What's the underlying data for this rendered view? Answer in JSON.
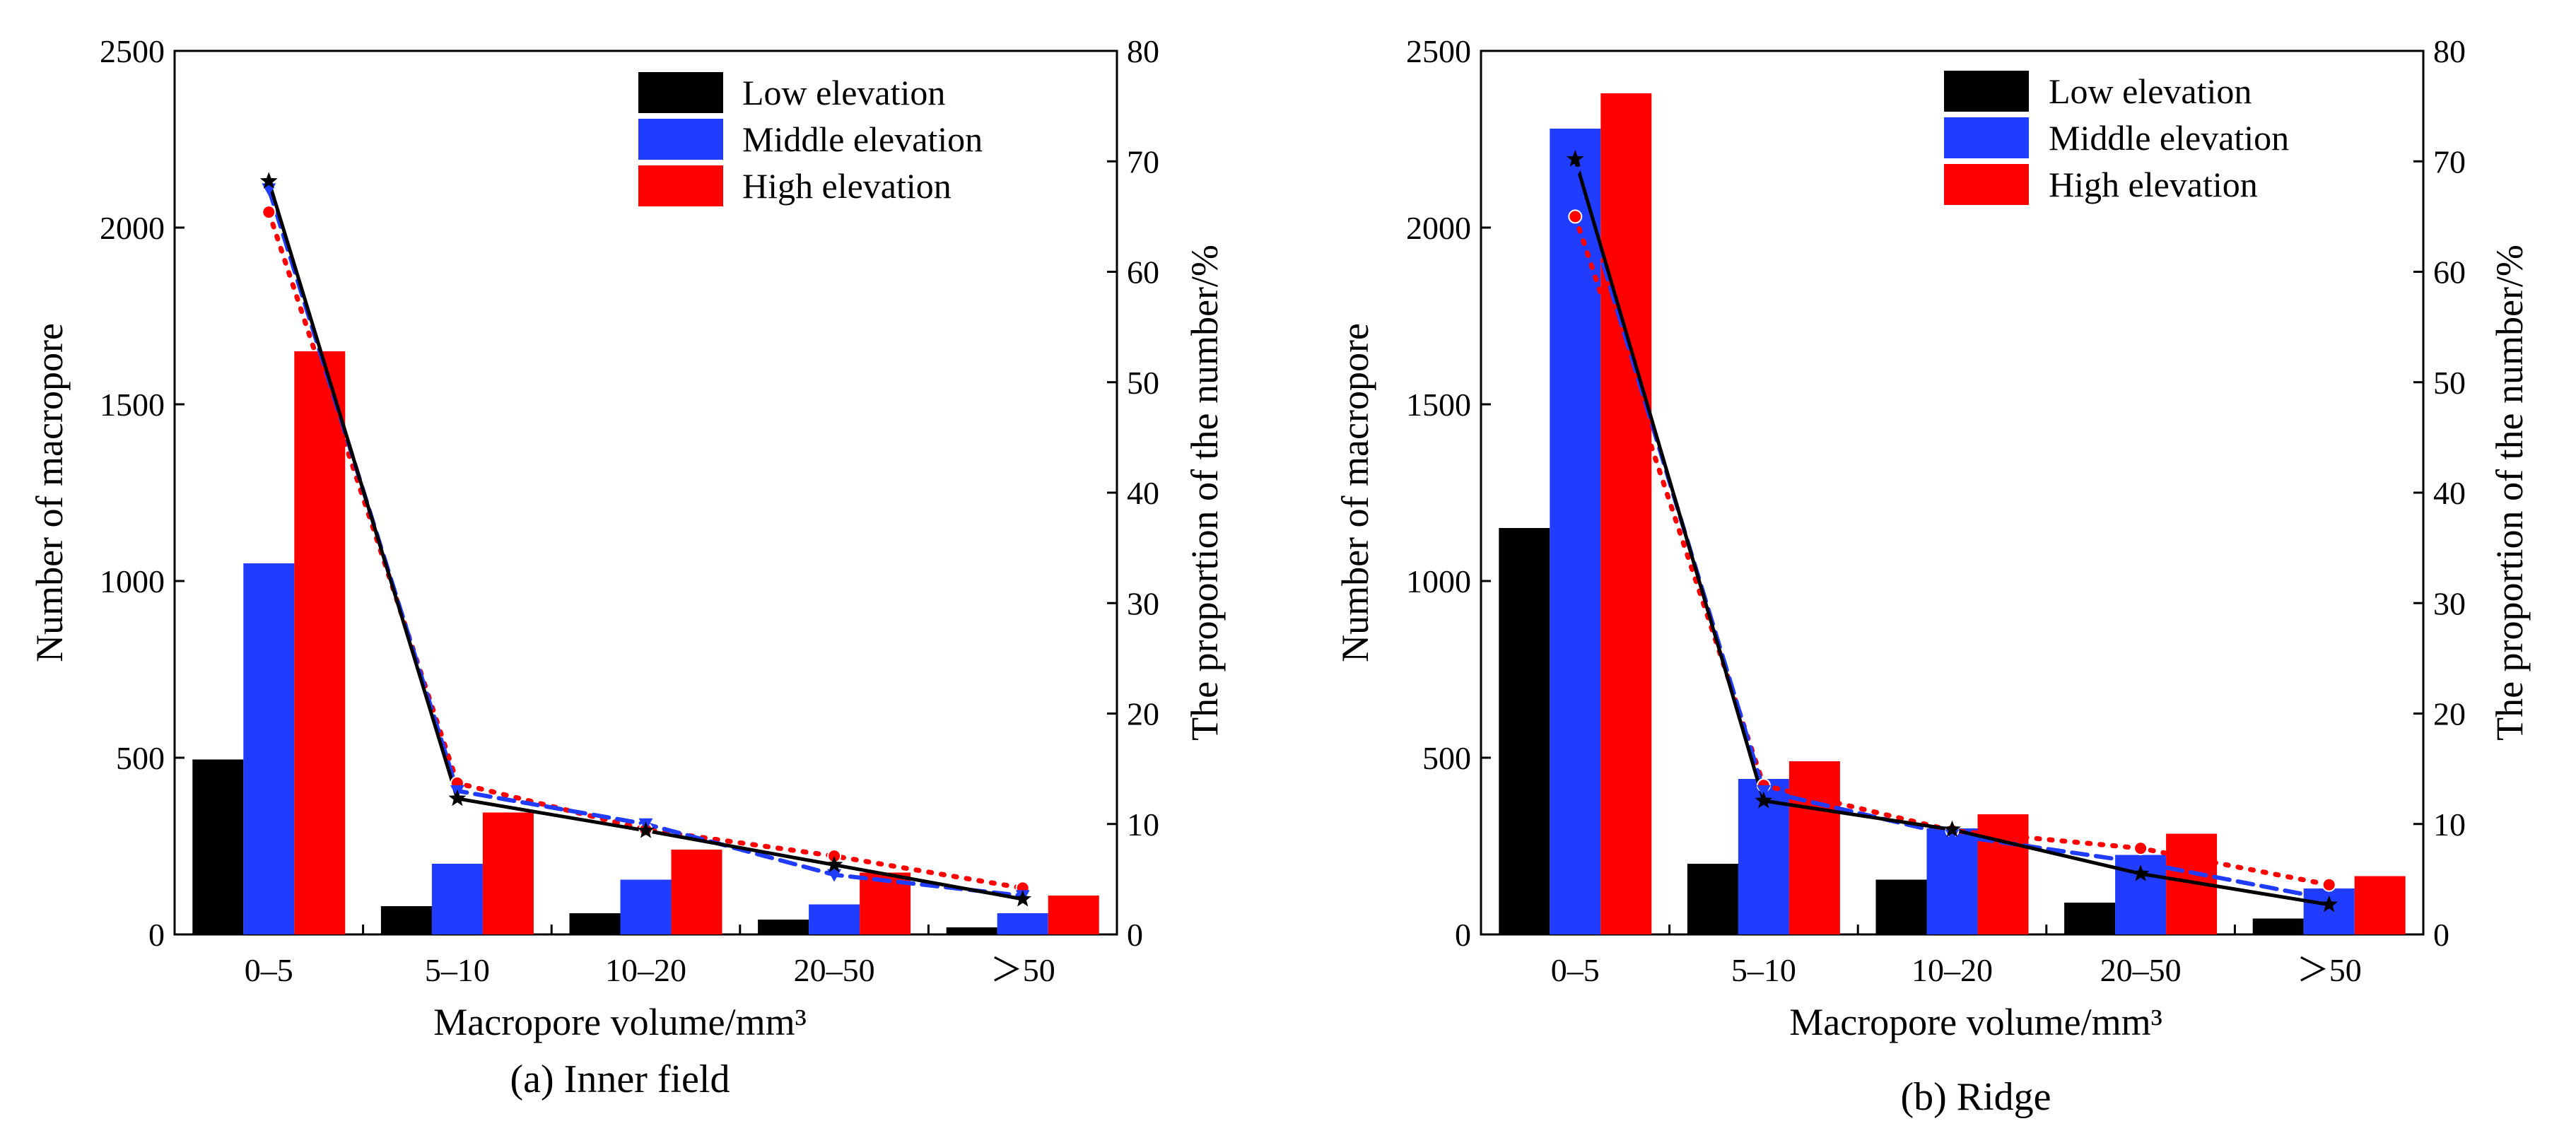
{
  "colors": {
    "low": "#000000",
    "middle": "#1f3cff",
    "high": "#ff0000"
  },
  "chart_data": [
    {
      "type": "bar",
      "caption": "(a) Inner field",
      "xlabel": "Macropore volume/mm³",
      "ylabel": "Number of macropore",
      "y2label": "The proportion of the number/%",
      "categories": [
        "0–5",
        "5–10",
        "10–20",
        "20–50",
        "＞50"
      ],
      "ylim": [
        0,
        2500
      ],
      "yticks": [
        "0",
        "500",
        "1000",
        "1500",
        "2000",
        "2500"
      ],
      "y2lim": [
        0,
        80
      ],
      "y2ticks": [
        "0",
        "10",
        "20",
        "30",
        "40",
        "50",
        "60",
        "70",
        "80"
      ],
      "legend": {
        "placement": "top-right",
        "entries": [
          "Low elevation",
          "Middle elevation",
          "High elevation"
        ]
      },
      "series": [
        {
          "name": "Low elevation",
          "values": [
            495,
            80,
            60,
            42,
            20
          ]
        },
        {
          "name": "Middle elevation",
          "values": [
            1050,
            200,
            155,
            85,
            60
          ]
        },
        {
          "name": "High elevation",
          "values": [
            1650,
            345,
            240,
            175,
            110
          ]
        }
      ],
      "proportion_series": [
        {
          "name": "Low elevation",
          "values": [
            68.2,
            12.3,
            9.4,
            6.3,
            3.2
          ]
        },
        {
          "name": "Middle elevation",
          "values": [
            67.5,
            13.0,
            10.0,
            5.4,
            3.5
          ]
        },
        {
          "name": "High elevation",
          "values": [
            65.4,
            13.7,
            9.5,
            7.1,
            4.2
          ]
        }
      ]
    },
    {
      "type": "bar",
      "caption": "(b) Ridge",
      "xlabel": "Macropore volume/mm³",
      "ylabel": "Number of macropore",
      "y2label": "The proportion of the number/%",
      "categories": [
        "0–5",
        "5–10",
        "10–20",
        "20–50",
        "＞50"
      ],
      "ylim": [
        0,
        2500
      ],
      "yticks": [
        "0",
        "500",
        "1000",
        "1500",
        "2000",
        "2500"
      ],
      "y2lim": [
        0,
        80
      ],
      "y2ticks": [
        "0",
        "10",
        "20",
        "30",
        "40",
        "50",
        "60",
        "70",
        "80"
      ],
      "legend": {
        "placement": "top-right",
        "entries": [
          "Low elevation",
          "Middle elevation",
          "High elevation"
        ]
      },
      "series": [
        {
          "name": "Low elevation",
          "values": [
            1150,
            200,
            155,
            90,
            45
          ]
        },
        {
          "name": "Middle elevation",
          "values": [
            2280,
            440,
            300,
            225,
            130
          ]
        },
        {
          "name": "High elevation",
          "values": [
            2380,
            490,
            340,
            285,
            165
          ]
        }
      ],
      "proportion_series": [
        {
          "name": "Low elevation",
          "values": [
            70.2,
            12.1,
            9.5,
            5.5,
            2.7
          ]
        },
        {
          "name": "Middle elevation",
          "values": [
            69.0,
            13.0,
            9.0,
            6.5,
            3.2
          ]
        },
        {
          "name": "High elevation",
          "values": [
            65.0,
            13.5,
            9.4,
            7.8,
            4.5
          ]
        }
      ]
    }
  ]
}
